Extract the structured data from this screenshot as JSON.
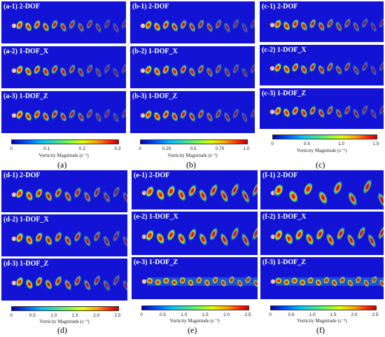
{
  "colorbar_title": "Vorticity Magnitude (s⁻¹)",
  "groups": [
    {
      "id": "a",
      "caption": "(a)",
      "ticks": [
        "0",
        "0.1",
        "0.2",
        "0.3"
      ],
      "panels": [
        {
          "label": "(a-1)  2-DOF"
        },
        {
          "label": "(a-2)  1-DOF_X"
        },
        {
          "label": "(a-3)  1-DOF_Z"
        }
      ]
    },
    {
      "id": "b",
      "caption": "(b)",
      "ticks": [
        "0",
        "0.25",
        "0.5",
        "0.75",
        "1.0"
      ],
      "panels": [
        {
          "label": "(b-1)  2-DOF"
        },
        {
          "label": "(b-2)  1-DOF_X"
        },
        {
          "label": "(b-3)  1-DOF_Z"
        }
      ]
    },
    {
      "id": "c",
      "caption": "(c)",
      "ticks": [
        "0",
        "0.5",
        "1.0",
        "1.5"
      ],
      "panels": [
        {
          "label": "(c-1)  2-DOF"
        },
        {
          "label": "(c-2)  1-DOF_X"
        },
        {
          "label": "(c-3)  1-DOF_Z"
        }
      ]
    },
    {
      "id": "d",
      "caption": "(d)",
      "ticks": [
        "0",
        "0.5",
        "1.0",
        "1.5",
        "2.0",
        "2.5"
      ],
      "panels": [
        {
          "label": "(d-1)  2-DOF"
        },
        {
          "label": "(d-2)  1-DOF_X"
        },
        {
          "label": "(d-3)  1-DOF_Z"
        }
      ]
    },
    {
      "id": "e",
      "caption": "(e)",
      "ticks": [
        "0",
        "0.5",
        "1.0",
        "1.5",
        "2.0",
        "2.5"
      ],
      "panels": [
        {
          "label": "(e-1)  2-DOF"
        },
        {
          "label": "(e-2)  1-DOF_X"
        },
        {
          "label": "(e-3)  1-DOF_Z"
        }
      ]
    },
    {
      "id": "f",
      "caption": "(f)",
      "ticks": [
        "0",
        "0.5",
        "1.0",
        "1.5",
        "2.0",
        "2.5"
      ],
      "panels": [
        {
          "label": "(f-1)  2-DOF"
        },
        {
          "label": "(f-2)  1-DOF_X"
        },
        {
          "label": "(f-3)  1-DOF_Z"
        }
      ]
    }
  ]
}
